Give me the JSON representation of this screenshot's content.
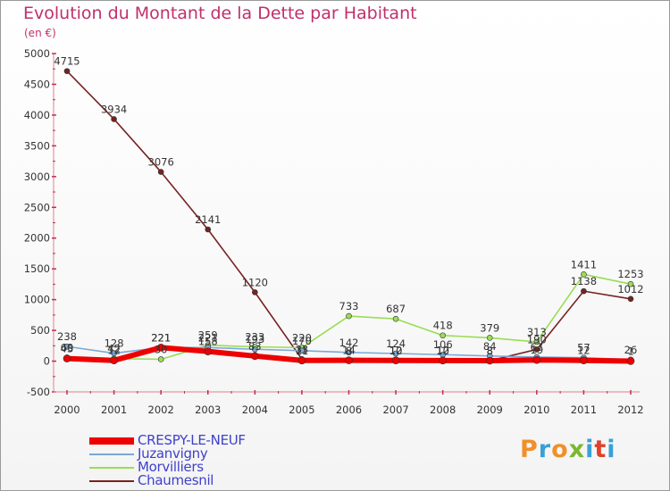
{
  "title": "Evolution du Montant de la Dette par Habitant",
  "unit_label": "(en €)",
  "logo": {
    "text": "Proxiti",
    "colors": [
      "#f0902a",
      "#3aa0d8",
      "#f0902a",
      "#7ab830",
      "#3aa0d8",
      "#e0402a",
      "#3aa0d8"
    ]
  },
  "chart_data": {
    "type": "line",
    "title": "Evolution du Montant de la Dette par Habitant",
    "ylabel": "(en €)",
    "x": [
      "2000",
      "2001",
      "2002",
      "2003",
      "2004",
      "2005",
      "2006",
      "2007",
      "2008",
      "2009",
      "2010",
      "2011",
      "2012"
    ],
    "ylim": [
      -500,
      5000
    ],
    "yticks": [
      -500,
      0,
      500,
      1000,
      1500,
      2000,
      2500,
      3000,
      3500,
      4000,
      4500,
      5000
    ],
    "grid": false,
    "legend_position": "bottom-left",
    "series": [
      {
        "name": "CRESPY-LE-NEUF",
        "color": "#ee0000",
        "values": [
          43,
          12,
          221,
          158,
          83,
          11,
          14,
          12,
          10,
          8,
          19,
          12,
          1
        ]
      },
      {
        "name": "Juzanvigny",
        "color": "#7aa8d8",
        "values": [
          238,
          128,
          221,
          221,
          193,
          170,
          142,
          124,
          106,
          84,
          67,
          57,
          26
        ]
      },
      {
        "name": "Morvilliers",
        "color": "#99dd55",
        "values": [
          60,
          42,
          30,
          259,
          233,
          220,
          733,
          687,
          418,
          379,
          313,
          1411,
          1253
        ]
      },
      {
        "name": "Chaumesnil",
        "color": "#772222",
        "values": [
          4715,
          3934,
          3076,
          2141,
          1120,
          33,
          8,
          10,
          12,
          8,
          190,
          1138,
          1012
        ]
      }
    ]
  }
}
